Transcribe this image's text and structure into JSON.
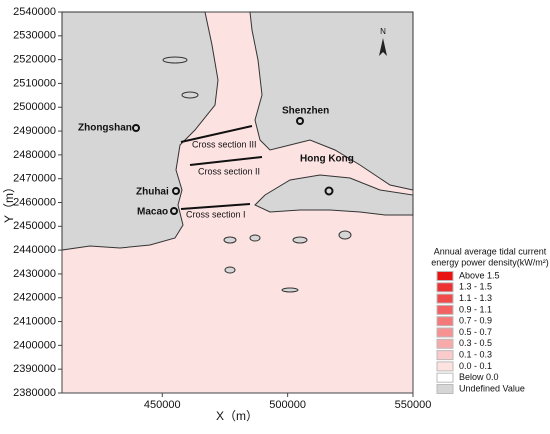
{
  "map": {
    "xlim": [
      410000,
      550000
    ],
    "ylim": [
      2380000,
      2540000
    ],
    "xticks": [
      450000,
      500000,
      550000
    ],
    "yticks": [
      2380000,
      2390000,
      2400000,
      2410000,
      2420000,
      2430000,
      2440000,
      2450000,
      2460000,
      2470000,
      2480000,
      2490000,
      2500000,
      2510000,
      2520000,
      2530000,
      2540000
    ],
    "xlabel": "X（m）",
    "ylabel": "Y（m）",
    "north": "N",
    "places": [
      "Zhongshan",
      "Shenzhen",
      "Hong Kong",
      "Zhuhai",
      "Macao"
    ],
    "sections": [
      "Cross section III",
      "Cross section II",
      "Cross section I"
    ],
    "legend": {
      "title": [
        "Annual average tidal current",
        "energy power density(kW/m²)"
      ],
      "items": [
        {
          "label": "Above 1.5",
          "color": "#e81414"
        },
        {
          "label": "1.3 - 1.5",
          "color": "#ec3232"
        },
        {
          "label": "1.1 - 1.3",
          "color": "#ef4b4b"
        },
        {
          "label": "0.9 - 1.1",
          "color": "#f26262"
        },
        {
          "label": "0.7 - 0.9",
          "color": "#f47a7a"
        },
        {
          "label": "0.5 - 0.7",
          "color": "#f69292"
        },
        {
          "label": "0.3 - 0.5",
          "color": "#f8aaaa"
        },
        {
          "label": "0.1 - 0.3",
          "color": "#fbcaca"
        },
        {
          "label": "0.0 - 0.1",
          "color": "#fde2e2"
        },
        {
          "label": "Below 0.0",
          "color": "#ffffff"
        },
        {
          "label": "Undefined Value",
          "color": "#d6d6d6"
        }
      ]
    }
  }
}
